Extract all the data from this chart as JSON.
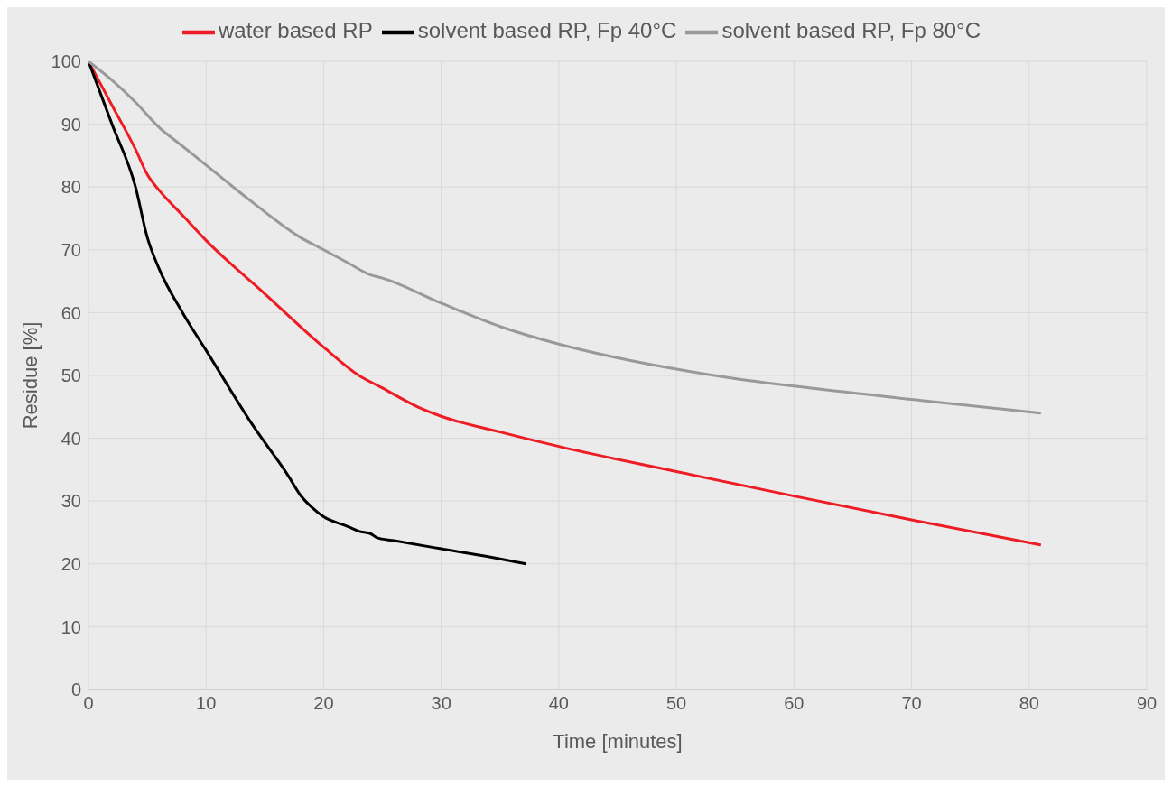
{
  "chart_data": {
    "type": "line",
    "xlabel": "Time [minutes]",
    "ylabel": "Residue [%]",
    "xlim": [
      0,
      90
    ],
    "xticks": [
      0,
      10,
      20,
      30,
      40,
      50,
      60,
      70,
      80,
      90
    ],
    "ylim": [
      0,
      100
    ],
    "yticks": [
      0,
      10,
      20,
      30,
      40,
      50,
      60,
      70,
      80,
      90,
      100
    ],
    "grid": true,
    "legend": "top",
    "marker": "none",
    "line_style": "solid",
    "series": [
      {
        "name": "water based RP",
        "color": "#ee1c25",
        "x": [
          0,
          2,
          4,
          5,
          6,
          8,
          10,
          15,
          20,
          23,
          25,
          28,
          30,
          35,
          40,
          50,
          60,
          70,
          81
        ],
        "values": [
          100,
          93,
          86,
          82,
          79.5,
          75.5,
          71.5,
          63,
          54.5,
          50,
          48,
          45,
          43.5,
          41,
          38.7,
          34.7,
          30.8,
          27,
          23
        ]
      },
      {
        "name": "solvent based RP, Fp 40°C",
        "color": "#000000",
        "x": [
          0,
          2,
          4,
          5,
          6,
          8,
          10,
          14,
          17,
          18,
          19,
          20,
          22,
          23,
          24,
          24.5,
          26,
          30,
          35,
          37.2
        ],
        "values": [
          100,
          90,
          80,
          72,
          67,
          60,
          54,
          42,
          34,
          31,
          29,
          27.5,
          26,
          25.2,
          24.8,
          24.2,
          23.7,
          22.4,
          20.8,
          20
        ]
      },
      {
        "name": "solvent based RP, Fp 80°C",
        "color": "#999999",
        "x": [
          0,
          2,
          4,
          6,
          8,
          10,
          14,
          18,
          20,
          22,
          24,
          25,
          30,
          35,
          40,
          45,
          50,
          55,
          60,
          70,
          81
        ],
        "values": [
          100,
          97,
          93.5,
          89.5,
          86.5,
          83.5,
          77.5,
          72,
          70,
          68,
          66,
          65.5,
          61.5,
          57.8,
          55,
          52.8,
          51,
          49.5,
          48.3,
          46.2,
          44
        ]
      }
    ]
  }
}
